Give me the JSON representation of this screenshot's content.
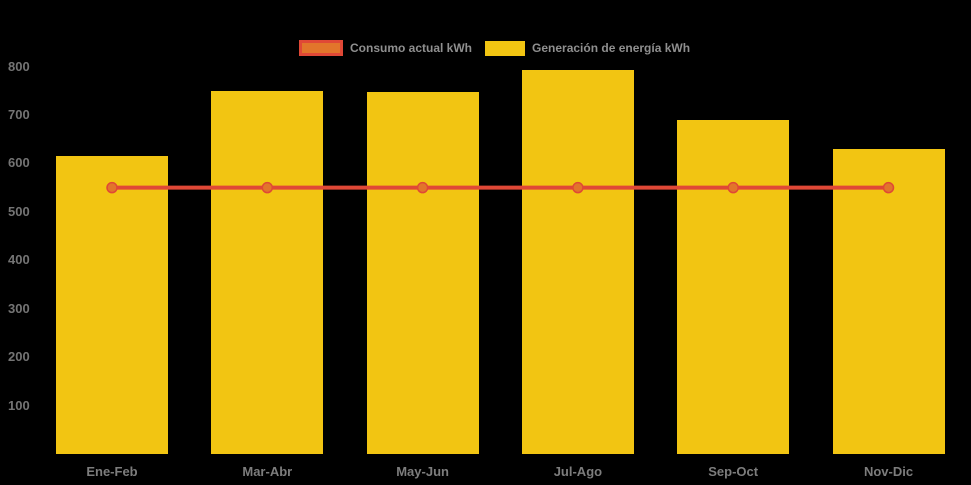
{
  "chart_data": {
    "type": "bar",
    "subtype": "bar-with-line-overlay",
    "title": "",
    "xlabel": "",
    "ylabel": "",
    "categories": [
      "Ene-Feb",
      "Mar-Abr",
      "May-Jun",
      "Jul-Ago",
      "Sep-Oct",
      "Nov-Dic"
    ],
    "series": [
      {
        "name": "Consumo actual kWh",
        "type": "line",
        "values": [
          550,
          550,
          550,
          550,
          550,
          550
        ],
        "color": "#e04836",
        "marker_fill": "#e2752b"
      },
      {
        "name": "Generación de energía kWh",
        "type": "bar",
        "values": [
          615,
          750,
          748,
          792,
          690,
          630
        ],
        "color": "#f2c512"
      }
    ],
    "ylim": [
      0,
      820
    ],
    "yticks": [
      100,
      200,
      300,
      400,
      500,
      600,
      700,
      800
    ],
    "grid": false,
    "legend_position": "top",
    "background": "#000000",
    "axis_text_color": "#747474"
  }
}
